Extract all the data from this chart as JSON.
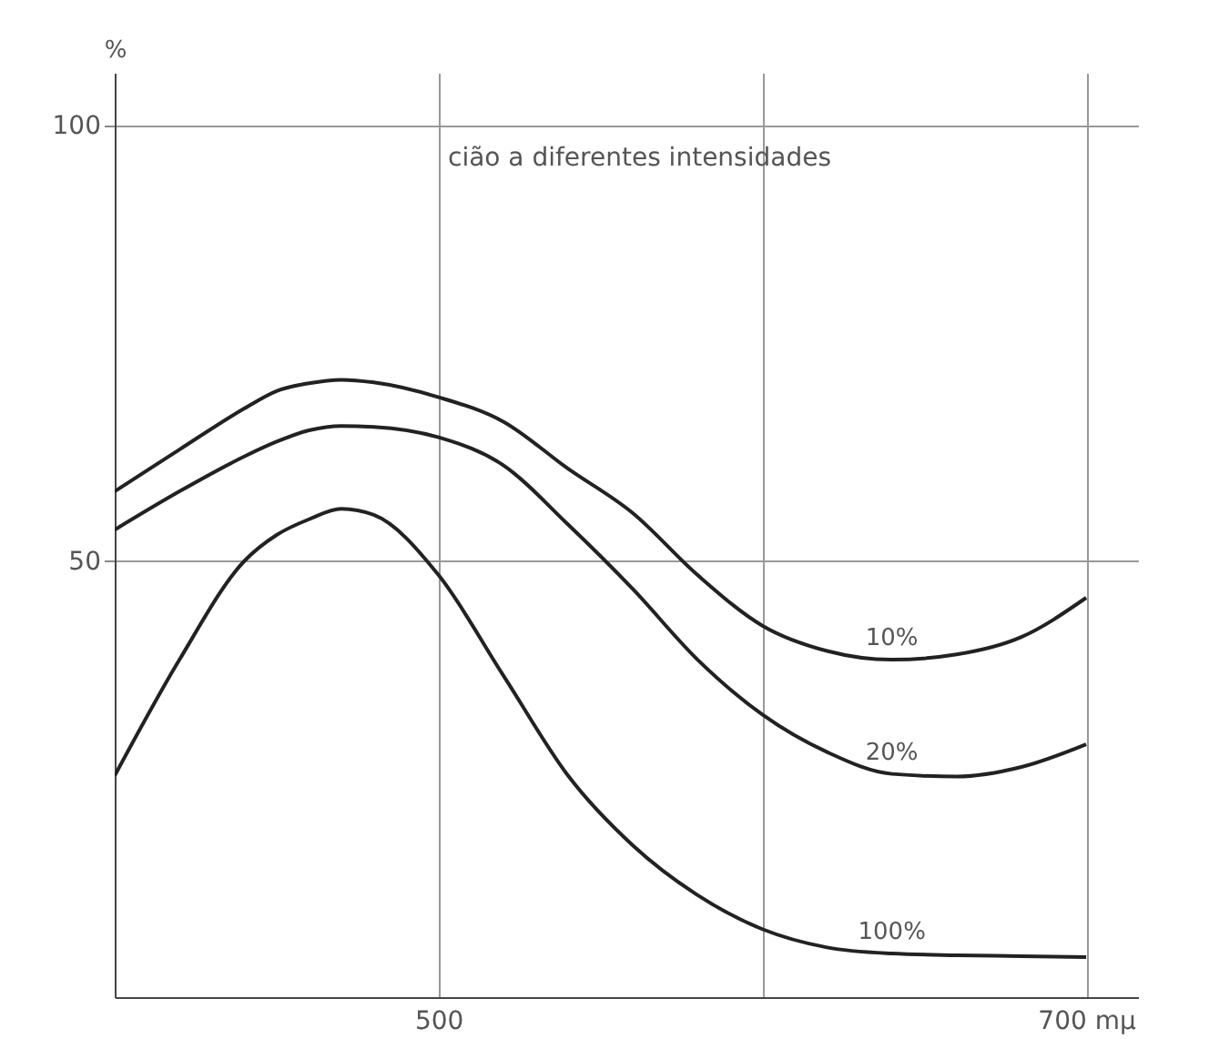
{
  "chart_data": {
    "type": "line",
    "ylabel": "%",
    "annotations": [
      "cião a diferentes intensidades"
    ],
    "xlim": [
      400,
      716
    ],
    "ylim": [
      0,
      106
    ],
    "xticks": [
      500,
      {
        "value": 600,
        "label": null
      },
      {
        "value": 700,
        "label": "700 mμ"
      }
    ],
    "yticks": [
      50,
      100
    ],
    "grid": true,
    "x": [
      400,
      420,
      440,
      450,
      460,
      470,
      480,
      500,
      520,
      540,
      560,
      580,
      600,
      620,
      640,
      660,
      680,
      700
    ],
    "series": [
      {
        "name": "10%",
        "color": "#222222",
        "values": [
          58,
          62.8,
          67.5,
          69.5,
          70.4,
          70.8,
          70.5,
          68.8,
          66,
          60.6,
          55.5,
          48.4,
          42.6,
          39.7,
          38.7,
          39.3,
          41.3,
          45.8
        ]
      },
      {
        "name": "20%",
        "color": "#222222",
        "values": [
          53.6,
          58,
          62,
          63.7,
          65,
          65.5,
          65.4,
          64.2,
          61,
          54.2,
          46.8,
          38.7,
          32.4,
          28.1,
          25.6,
          25.3,
          26.4,
          29
        ]
      },
      {
        "name": "100%",
        "color": "#222222",
        "values": [
          25.4,
          38.7,
          50,
          53,
          54.8,
          56,
          55.3,
          48.4,
          36.9,
          25.4,
          17.4,
          11.7,
          7.8,
          5.7,
          5,
          4.8,
          4.7,
          4.6
        ]
      }
    ]
  }
}
